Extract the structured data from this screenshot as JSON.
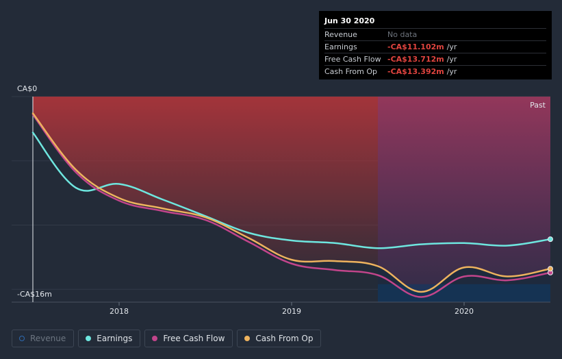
{
  "tooltip": {
    "date": "Jun 30 2020",
    "rows": [
      {
        "label": "Revenue",
        "value": "No data",
        "unit": ""
      },
      {
        "label": "Earnings",
        "value": "-CA$11.102m",
        "unit": "/yr"
      },
      {
        "label": "Free Cash Flow",
        "value": "-CA$13.712m",
        "unit": "/yr"
      },
      {
        "label": "Cash From Op",
        "value": "-CA$13.392m",
        "unit": "/yr"
      }
    ]
  },
  "legend": [
    {
      "label": "Revenue",
      "color": "#2e6ab1",
      "active": false
    },
    {
      "label": "Earnings",
      "color": "#6ee6df",
      "active": true
    },
    {
      "label": "Free Cash Flow",
      "color": "#c2458b",
      "active": true
    },
    {
      "label": "Cash From Op",
      "color": "#eeb35e",
      "active": true
    }
  ],
  "chart_data": {
    "type": "line",
    "y_top_label": "CA$0",
    "y_bottom_label": "-CA$16m",
    "ylim": [
      -16,
      0
    ],
    "xlim": [
      2017.5,
      2020.5
    ],
    "x_ticks": [
      2018,
      2019,
      2020
    ],
    "x_tick_labels": [
      "2018",
      "2019",
      "2020"
    ],
    "past_label": "Past",
    "past_start": 2019.5,
    "grid": true,
    "series": [
      {
        "name": "Earnings",
        "color": "#6ee6df",
        "x": [
          2017.5,
          2017.75,
          2018.0,
          2018.25,
          2018.5,
          2018.75,
          2019.0,
          2019.25,
          2019.5,
          2019.75,
          2020.0,
          2020.25,
          2020.5
        ],
        "y": [
          -2.8,
          -7.1,
          -6.8,
          -8.0,
          -9.3,
          -10.6,
          -11.2,
          -11.4,
          -11.8,
          -11.5,
          -11.4,
          -11.6,
          -11.1
        ]
      },
      {
        "name": "Free Cash Flow",
        "color": "#c2458b",
        "x": [
          2017.5,
          2017.75,
          2018.0,
          2018.25,
          2018.5,
          2018.75,
          2019.0,
          2019.25,
          2019.5,
          2019.75,
          2020.0,
          2020.25,
          2020.5
        ],
        "y": [
          -1.4,
          -5.9,
          -8.1,
          -8.9,
          -9.6,
          -11.3,
          -13.0,
          -13.5,
          -13.9,
          -15.6,
          -14.0,
          -14.3,
          -13.7
        ]
      },
      {
        "name": "Cash From Op",
        "color": "#eeb35e",
        "x": [
          2017.5,
          2017.75,
          2018.0,
          2018.25,
          2018.5,
          2018.75,
          2019.0,
          2019.25,
          2019.5,
          2019.75,
          2020.0,
          2020.25,
          2020.5
        ],
        "y": [
          -1.3,
          -5.7,
          -7.9,
          -8.7,
          -9.4,
          -11.0,
          -12.7,
          -12.8,
          -13.2,
          -15.2,
          -13.3,
          -14.0,
          -13.4
        ]
      }
    ]
  }
}
